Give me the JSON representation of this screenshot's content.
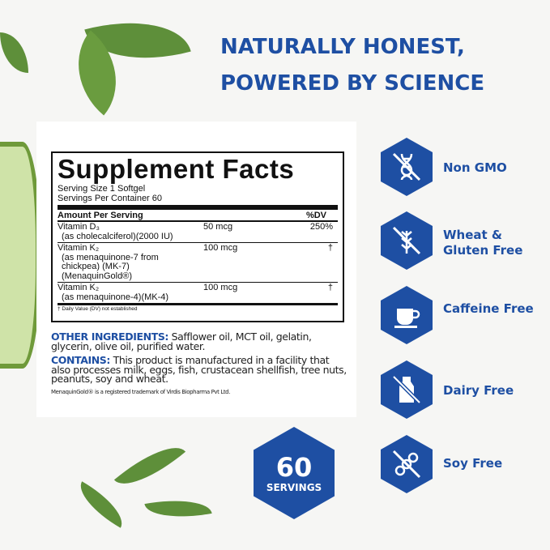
{
  "headline": {
    "line1": "NATURALLY HONEST,",
    "line2": "POWERED BY SCIENCE"
  },
  "facts": {
    "title": "Supplement Facts",
    "serving_size": "Serving Size 1 Softgel",
    "servings_per_container": "Servings Per Container 60",
    "amount_header": "Amount Per Serving",
    "dv_header": "%DV",
    "rows": [
      {
        "name": "Vitamin D₃",
        "detail": "(as cholecalciferol)(2000 IU)",
        "amount": "50 mcg",
        "dv": "250%"
      },
      {
        "name": "Vitamin K₂",
        "detail": "(as menaquinone-7 from chickpea) (MK-7) (MenaquinGold®)",
        "amount": "100 mcg",
        "dv": "†"
      },
      {
        "name": "Vitamin K₂",
        "detail": "(as menaquinone-4)(MK-4)",
        "amount": "100 mcg",
        "dv": "†"
      }
    ],
    "footnote": "† Daily Value (DV) not established"
  },
  "ingredients": {
    "other_label": "OTHER INGREDIENTS:",
    "other_text": "Safflower oil, MCT oil, gelatin, glycerin, olive oil, purified water.",
    "contains_label": "CONTAINS:",
    "contains_text": "This product is manufactured in a facility that also processes milk, eggs, fish, crustacean shellfish, tree nuts, peanuts, soy and wheat.",
    "trademark": "MenaquinGold® is a registered trademark of Virdis Biopharma Pvt Ltd."
  },
  "badges": [
    {
      "icon": "dna-crossed-icon",
      "label": "Non GMO"
    },
    {
      "icon": "wheat-crossed-icon",
      "label": "Wheat & Gluten Free"
    },
    {
      "icon": "cup-icon",
      "label": "Caffeine Free"
    },
    {
      "icon": "milk-bottle-crossed-icon",
      "label": "Dairy Free"
    },
    {
      "icon": "soy-crossed-icon",
      "label": "Soy Free"
    }
  ],
  "servings_badge": {
    "count": "60",
    "label": "SERVINGS"
  },
  "colors": {
    "brand": "#1e4fa3",
    "leaf": "#5e8f3a"
  }
}
